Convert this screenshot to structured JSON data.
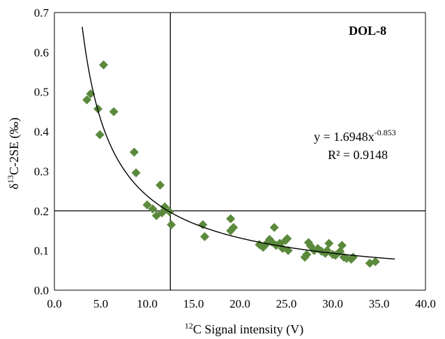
{
  "chart_data": {
    "type": "scatter",
    "panel_label": "DOL-8",
    "xlabel_sup": "12",
    "xlabel_main": "C Signal intensity (V)",
    "ylabel_pre": "δ",
    "ylabel_sup": "13",
    "ylabel_main": "C-2SE (‰)",
    "xlim": [
      0,
      40
    ],
    "ylim": [
      0,
      0.7
    ],
    "x_ticks": [
      "0.0",
      "5.0",
      "10.0",
      "15.0",
      "20.0",
      "25.0",
      "30.0",
      "35.0",
      "40.0"
    ],
    "y_ticks": [
      "0.0",
      "0.1",
      "0.2",
      "0.3",
      "0.4",
      "0.5",
      "0.6",
      "0.7"
    ],
    "grid": false,
    "marker_color": "#5b8a3c",
    "points": [
      [
        3.5,
        0.48
      ],
      [
        3.9,
        0.495
      ],
      [
        4.7,
        0.457
      ],
      [
        4.9,
        0.392
      ],
      [
        5.3,
        0.568
      ],
      [
        6.4,
        0.45
      ],
      [
        8.6,
        0.348
      ],
      [
        8.8,
        0.296
      ],
      [
        10.0,
        0.215
      ],
      [
        10.6,
        0.205
      ],
      [
        11.0,
        0.188
      ],
      [
        11.4,
        0.265
      ],
      [
        11.6,
        0.195
      ],
      [
        11.9,
        0.21
      ],
      [
        12.4,
        0.198
      ],
      [
        12.6,
        0.165
      ],
      [
        16.0,
        0.165
      ],
      [
        16.2,
        0.135
      ],
      [
        19.0,
        0.18
      ],
      [
        19.0,
        0.15
      ],
      [
        19.3,
        0.158
      ],
      [
        22.1,
        0.115
      ],
      [
        22.5,
        0.108
      ],
      [
        22.9,
        0.118
      ],
      [
        23.2,
        0.128
      ],
      [
        23.4,
        0.122
      ],
      [
        23.7,
        0.158
      ],
      [
        23.9,
        0.113
      ],
      [
        24.3,
        0.118
      ],
      [
        24.6,
        0.105
      ],
      [
        24.9,
        0.125
      ],
      [
        25.1,
        0.13
      ],
      [
        25.2,
        0.1
      ],
      [
        27.0,
        0.083
      ],
      [
        27.2,
        0.09
      ],
      [
        27.4,
        0.12
      ],
      [
        27.6,
        0.112
      ],
      [
        28.0,
        0.1
      ],
      [
        28.4,
        0.105
      ],
      [
        28.8,
        0.098
      ],
      [
        29.2,
        0.093
      ],
      [
        29.4,
        0.1
      ],
      [
        29.6,
        0.118
      ],
      [
        30.0,
        0.09
      ],
      [
        30.3,
        0.088
      ],
      [
        30.8,
        0.098
      ],
      [
        31.0,
        0.113
      ],
      [
        31.2,
        0.083
      ],
      [
        31.5,
        0.08
      ],
      [
        32.0,
        0.078
      ],
      [
        32.2,
        0.083
      ],
      [
        34.0,
        0.068
      ],
      [
        34.6,
        0.072
      ]
    ],
    "fit_a": 1.6948,
    "fit_b": -0.853,
    "fit_x_range": [
      3.0,
      36.7
    ],
    "fit_equation_prefix": "y = 1.6948x",
    "fit_equation_exp": "-0.853",
    "fit_r2": "R² = 0.9148",
    "ref_vline_x": 12.5,
    "ref_hline_y": 0.2
  }
}
